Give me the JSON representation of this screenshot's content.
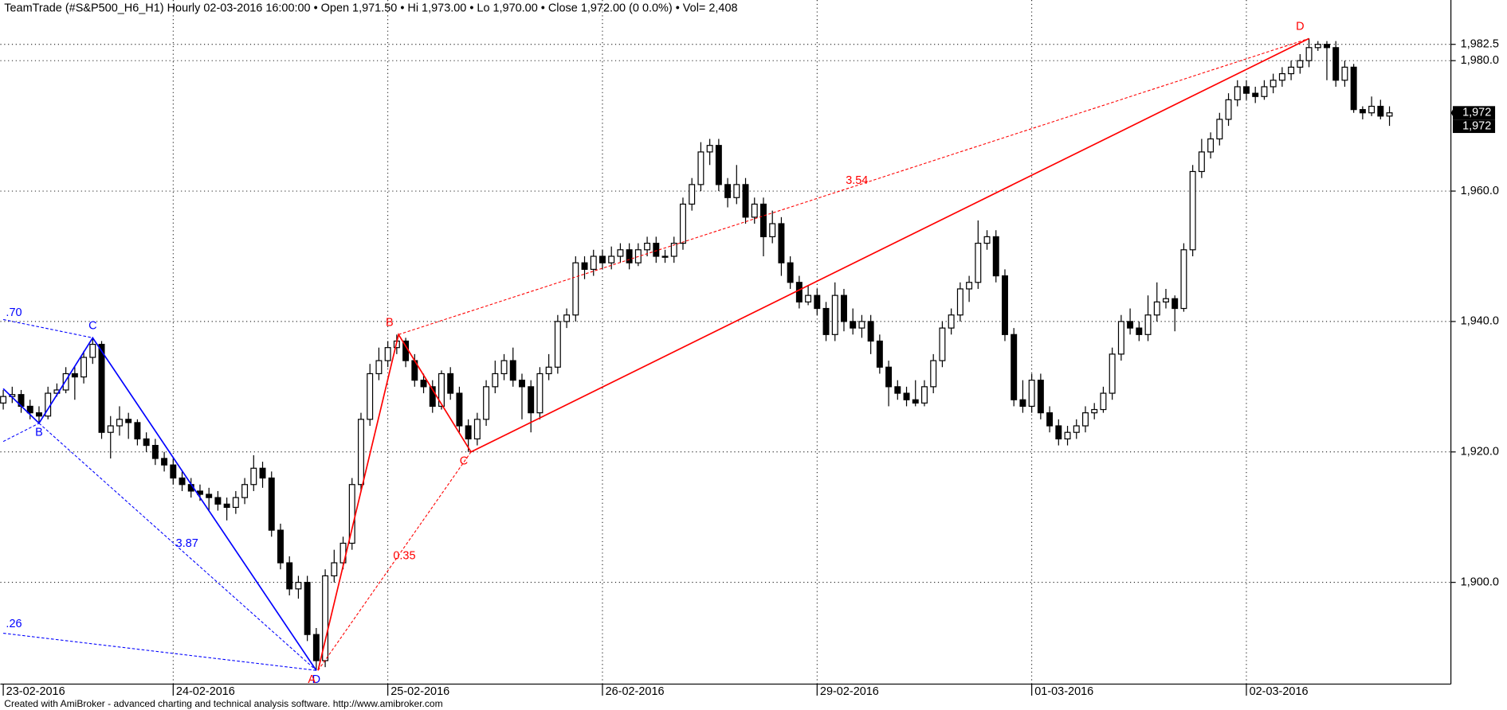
{
  "chart_data": {
    "type": "candlestick",
    "title": "TeamTrade (#S&P500_H6_H1) Hourly  02-03-2016 16:00:00  •  Open 1,971.50  •  Hi 1,973.00  •  Lo 1,970.00  •  Close 1,972.00 (0 0.0%)  •  Vol= 2,408",
    "footer": "Created with AmiBroker - advanced charting and technical analysis software. http://www.amibroker.com",
    "categories": [
      "23-02-2016",
      null,
      null,
      null,
      null,
      null,
      null,
      null,
      null,
      null,
      null,
      null,
      null,
      null,
      null,
      null,
      null,
      null,
      null,
      "24-02-2016",
      null,
      null,
      null,
      null,
      null,
      null,
      null,
      null,
      null,
      null,
      null,
      null,
      null,
      null,
      null,
      null,
      null,
      null,
      null,
      null,
      null,
      null,
      null,
      "25-02-2016",
      null,
      null,
      null,
      null,
      null,
      null,
      null,
      null,
      null,
      null,
      null,
      null,
      null,
      null,
      null,
      null,
      null,
      null,
      null,
      null,
      null,
      null,
      null,
      "26-02-2016",
      null,
      null,
      null,
      null,
      null,
      null,
      null,
      null,
      null,
      null,
      null,
      null,
      null,
      null,
      null,
      null,
      null,
      null,
      null,
      null,
      null,
      null,
      null,
      "29-02-2016",
      null,
      null,
      null,
      null,
      null,
      null,
      null,
      null,
      null,
      null,
      null,
      null,
      null,
      null,
      null,
      null,
      null,
      null,
      null,
      null,
      null,
      null,
      null,
      "01-03-2016",
      null,
      null,
      null,
      null,
      null,
      null,
      null,
      null,
      null,
      null,
      null,
      null,
      null,
      null,
      null,
      null,
      null,
      null,
      null,
      null,
      null,
      null,
      null,
      "02-03-2016",
      null,
      null,
      null,
      null,
      null,
      null,
      null,
      null,
      null,
      null,
      null,
      null,
      null,
      null,
      null,
      null
    ],
    "open": [
      1927.5,
      1928.5,
      1928.8,
      1927,
      1926,
      1925.5,
      1929,
      1929.5,
      1932,
      1931.5,
      1934.5,
      1936.5,
      1923,
      1924,
      1925,
      1924.5,
      1922,
      1921,
      1919,
      1918,
      1916,
      1915,
      1914,
      1913.5,
      1913,
      1912,
      1911.5,
      1913,
      1915,
      1917.5,
      1916,
      1908,
      1903,
      1899,
      1900,
      1892,
      1888,
      1901,
      1903,
      1906,
      1915,
      1925,
      1932,
      1934,
      1936,
      1937,
      1934,
      1931,
      1930,
      1927,
      1932,
      1929,
      1924,
      1922,
      1925,
      1930,
      1932,
      1934,
      1931,
      1930,
      1926,
      1932,
      1933,
      1940,
      1941,
      1949,
      1948,
      1950,
      1949,
      1950,
      1951,
      1949,
      1951,
      1952,
      1950,
      1950,
      1952,
      1958,
      1961,
      1966,
      1967,
      1961,
      1959,
      1961,
      1956,
      1958,
      1953,
      1955,
      1949,
      1946,
      1943,
      1944,
      1942,
      1938,
      1944,
      1940,
      1939,
      1940,
      1937,
      1933,
      1930,
      1929,
      1928,
      1927.5,
      1930,
      1934,
      1939,
      1941,
      1945,
      1946,
      1952,
      1953,
      1947,
      1938,
      1928,
      1927,
      1931,
      1926,
      1924,
      1922,
      1923,
      1924,
      1926,
      1926.5,
      1929,
      1935,
      1940,
      1939,
      1938,
      1941,
      1943,
      1943.5,
      1942,
      1951,
      1963,
      1966,
      1968,
      1971,
      1974,
      1976,
      1975,
      1974.5,
      1976,
      1977,
      1978,
      1979,
      1980,
      1982,
      1982.5,
      1982,
      1977,
      1979,
      1972.5,
      1972,
      1973,
      1971.5
    ],
    "high": [
      1929.5,
      1930,
      1929.5,
      1928,
      1927,
      1930,
      1930.5,
      1933,
      1933,
      1935.5,
      1937.5,
      1937,
      1925.5,
      1927,
      1926,
      1925,
      1923,
      1922,
      1920,
      1919,
      1917,
      1916,
      1915,
      1914.5,
      1914,
      1913,
      1914,
      1916,
      1919.5,
      1918.5,
      1917,
      1909,
      1904,
      1901,
      1901,
      1893,
      1902,
      1905,
      1907,
      1916,
      1926,
      1933.5,
      1936,
      1937,
      1938,
      1937.5,
      1935,
      1932,
      1931,
      1932.5,
      1933,
      1930,
      1925,
      1926,
      1931,
      1934,
      1935,
      1936,
      1932,
      1931,
      1933,
      1935,
      1941,
      1942,
      1950,
      1950,
      1951,
      1951,
      1951.5,
      1952,
      1952,
      1952,
      1953,
      1953,
      1951,
      1953,
      1959,
      1962,
      1967.5,
      1968,
      1968,
      1962,
      1964,
      1962,
      1959,
      1959,
      1957,
      1956,
      1950,
      1947,
      1945.5,
      1945,
      1943,
      1946,
      1945,
      1942,
      1941,
      1941,
      1938,
      1934,
      1931,
      1930,
      1931,
      1931,
      1935,
      1940,
      1942,
      1946,
      1947,
      1955.5,
      1954,
      1954,
      1948,
      1939,
      1931,
      1932,
      1932,
      1927,
      1925,
      1924,
      1925,
      1927,
      1927.5,
      1930,
      1936,
      1941,
      1942,
      1940,
      1944,
      1946,
      1945,
      1944,
      1952,
      1964,
      1968,
      1969,
      1972,
      1975,
      1977,
      1977,
      1976,
      1977,
      1978,
      1979,
      1980,
      1981,
      1983.4,
      1983,
      1983,
      1983,
      1980,
      1979.5,
      1973,
      1974.5,
      1974,
      1973
    ],
    "low": [
      1926.5,
      1927.5,
      1926,
      1925,
      1924.4,
      1925,
      1928.5,
      1929,
      1928,
      1930.5,
      1933.5,
      1922,
      1919,
      1922.5,
      1922,
      1921,
      1920,
      1918,
      1917,
      1915,
      1914,
      1913,
      1912.5,
      1911,
      1911,
      1909.5,
      1910.5,
      1912,
      1914,
      1914.5,
      1907,
      1902,
      1898,
      1897.5,
      1891,
      1886.5,
      1887,
      1900,
      1902,
      1905,
      1914,
      1924,
      1931,
      1933,
      1935,
      1933,
      1930,
      1929,
      1926,
      1926.5,
      1928,
      1923,
      1920,
      1921,
      1924,
      1929,
      1931,
      1930,
      1925,
      1923,
      1925,
      1931,
      1932,
      1939,
      1940,
      1946.5,
      1947,
      1948,
      1948,
      1949,
      1948,
      1948.5,
      1950,
      1949,
      1949,
      1949,
      1951,
      1957,
      1960,
      1964,
      1960,
      1957.5,
      1958,
      1955,
      1955,
      1950,
      1952,
      1947,
      1945,
      1942,
      1942.5,
      1941,
      1937,
      1937,
      1938.5,
      1938,
      1937.5,
      1935,
      1932,
      1927,
      1928,
      1927,
      1927,
      1927,
      1929,
      1933,
      1938,
      1940,
      1943,
      1945,
      1951,
      1946,
      1937,
      1927,
      1926,
      1926,
      1925,
      1923,
      1921,
      1921,
      1922,
      1923,
      1925,
      1926,
      1928,
      1934,
      1938,
      1937,
      1937,
      1940,
      1942,
      1938.5,
      1941.5,
      1950,
      1962,
      1965,
      1967,
      1970,
      1973,
      1974,
      1973.5,
      1974,
      1975,
      1976,
      1977,
      1978,
      1979,
      1981.5,
      1977,
      1976,
      1976,
      1972,
      1971,
      1971.5,
      1971,
      1970
    ],
    "close": [
      1928.5,
      1928.8,
      1927,
      1926,
      1925.5,
      1929,
      1929.5,
      1932,
      1931.5,
      1934.5,
      1936.5,
      1923,
      1924,
      1925,
      1924.5,
      1922,
      1921,
      1919,
      1918,
      1916,
      1915,
      1914,
      1913.5,
      1913,
      1912,
      1911.5,
      1913,
      1915,
      1917.5,
      1916,
      1908,
      1903,
      1899,
      1900,
      1892,
      1888,
      1901,
      1903,
      1906,
      1915,
      1925,
      1932,
      1934,
      1936,
      1937,
      1934,
      1931,
      1930,
      1927,
      1932,
      1929,
      1924,
      1922,
      1925,
      1930,
      1932,
      1934,
      1931,
      1930,
      1926,
      1932,
      1933,
      1940,
      1941,
      1949,
      1948,
      1950,
      1949,
      1950,
      1951,
      1949,
      1951,
      1952,
      1950,
      1950,
      1952,
      1958,
      1961,
      1966,
      1967,
      1961,
      1959,
      1961,
      1956,
      1958,
      1953,
      1955,
      1949,
      1946,
      1943,
      1944,
      1942,
      1938,
      1944,
      1940,
      1939,
      1940,
      1937,
      1933,
      1930,
      1929,
      1928,
      1927.5,
      1930,
      1934,
      1939,
      1941,
      1945,
      1946,
      1952,
      1953,
      1947,
      1938,
      1928,
      1927,
      1931,
      1926,
      1924,
      1922,
      1923,
      1924,
      1926,
      1926.5,
      1929,
      1935,
      1940,
      1939,
      1938,
      1941,
      1943,
      1943.5,
      1942,
      1951,
      1963,
      1966,
      1968,
      1971,
      1974,
      1976,
      1975,
      1974.5,
      1976,
      1977,
      1978,
      1979,
      1980,
      1982,
      1982.5,
      1982,
      1977,
      1979,
      1972.5,
      1972,
      1973,
      1971.5,
      1972
    ],
    "up_color": "#ffffff",
    "down_color": "#000000",
    "ylim": [
      1884.4,
      1989.3
    ],
    "yticks": [
      {
        "value": 1900,
        "label": "1,900.0"
      },
      {
        "value": 1920,
        "label": "1,920.0"
      },
      {
        "value": 1940,
        "label": "1,940.0"
      },
      {
        "value": 1960,
        "label": "1,960.0"
      },
      {
        "value": 1980,
        "label": "1,980.0"
      },
      {
        "value": 1982.5,
        "label": "1,982.5"
      }
    ],
    "grid": true,
    "price_labels": [
      "1,972",
      "1,972"
    ],
    "patterns": [
      {
        "color": "#0000ff",
        "solid": [
          [
            0,
            1929.7
          ],
          [
            4,
            1924.4
          ],
          [
            10,
            1937.5
          ],
          [
            35,
            1886.5
          ]
        ],
        "dashed": [
          [
            [
              0,
              1940.3
            ],
            [
              10,
              1937.5
            ]
          ],
          [
            [
              0,
              1921.6
            ],
            [
              4,
              1924.4
            ]
          ],
          [
            [
              4,
              1924.4
            ],
            [
              35,
              1886.5
            ]
          ],
          [
            [
              0,
              1892.2
            ],
            [
              35,
              1886.5
            ]
          ]
        ],
        "labels": [
          {
            "text": "B",
            "x": 4,
            "price": 1924.4,
            "pos": "below"
          },
          {
            "text": "C",
            "x": 10,
            "price": 1937.5,
            "pos": "above"
          },
          {
            "text": "D",
            "x": 35,
            "price": 1886.5,
            "pos": "below"
          },
          {
            "text": ".70",
            "x": 0.3,
            "price": 1941.3,
            "pos": "right"
          },
          {
            "text": "3.87",
            "x": 19.3,
            "price": 1905.9,
            "pos": "right"
          },
          {
            "text": ".26",
            "x": 0.3,
            "price": 1893.6,
            "pos": "right"
          }
        ]
      },
      {
        "color": "#ff0000",
        "solid": [
          [
            35.2,
            1886.5
          ],
          [
            44.2,
            1938
          ],
          [
            52.3,
            1920
          ],
          [
            146,
            1983.4
          ]
        ],
        "dashed": [
          [
            [
              35.2,
              1886.5
            ],
            [
              52.3,
              1920
            ]
          ],
          [
            [
              44.2,
              1938
            ],
            [
              146,
              1983.4
            ]
          ]
        ],
        "labels": [
          {
            "text": "A",
            "x": 34.5,
            "price": 1886.5,
            "pos": "below"
          },
          {
            "text": "B",
            "x": 43.2,
            "price": 1938,
            "pos": "above"
          },
          {
            "text": "C",
            "x": 51.5,
            "price": 1920,
            "pos": "below"
          },
          {
            "text": "D",
            "x": 145,
            "price": 1983.4,
            "pos": "above"
          },
          {
            "text": "0.35",
            "x": 43.6,
            "price": 1904,
            "pos": "right"
          },
          {
            "text": "3.54",
            "x": 94.2,
            "price": 1961.6,
            "pos": "right"
          }
        ]
      }
    ]
  }
}
